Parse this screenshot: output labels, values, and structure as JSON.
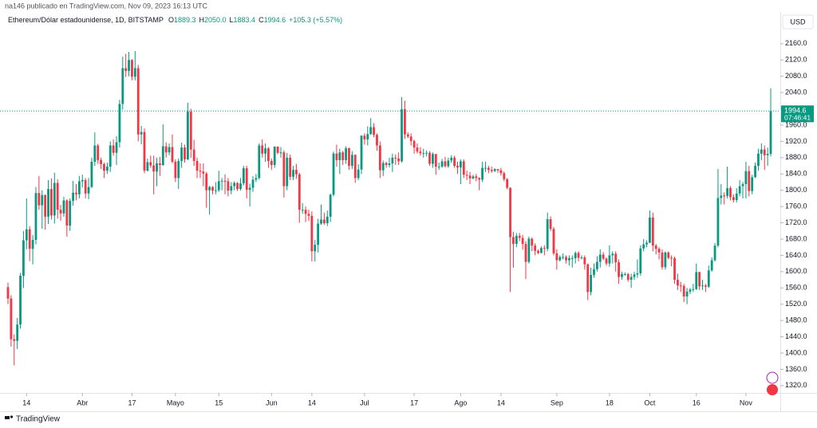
{
  "header": "na146 publicado en TradingView.com, Nov 09, 2023 16:13 UTC",
  "brand": "TradingView",
  "chart_data": {
    "type": "candlestick",
    "legend": {
      "symbol": "Ethereum/Dólar estadounidense, 1D, BITSTAMP",
      "items": [
        {
          "key": "O",
          "value": "1889.3"
        },
        {
          "key": "H",
          "value": "2050.0"
        },
        {
          "key": "L",
          "value": "1883.4"
        },
        {
          "key": "C",
          "value": "1994.6"
        }
      ],
      "change": "+105.3 (+5.57%)"
    },
    "currency": "USD",
    "countdown": "07:46:41",
    "up_color": "#089981",
    "down_color": "#f23645",
    "ylim": [
      1304,
      2238
    ],
    "yticks": [
      {
        "value": 1320,
        "label": "1320.0"
      },
      {
        "value": 1360,
        "label": "1360.0"
      },
      {
        "value": 1400,
        "label": "1400.0"
      },
      {
        "value": 1440,
        "label": "1440.0"
      },
      {
        "value": 1480,
        "label": "1480.0"
      },
      {
        "value": 1520,
        "label": "1520.0"
      },
      {
        "value": 1560,
        "label": "1560.0"
      },
      {
        "value": 1600,
        "label": "1600.0"
      },
      {
        "value": 1640,
        "label": "1640.0"
      },
      {
        "value": 1680,
        "label": "1680.0"
      },
      {
        "value": 1720,
        "label": "1720.0"
      },
      {
        "value": 1760,
        "label": "1760.0"
      },
      {
        "value": 1800,
        "label": "1800.0"
      },
      {
        "value": 1840,
        "label": "1840.0"
      },
      {
        "value": 1880,
        "label": "1880.0"
      },
      {
        "value": 1920,
        "label": "1920.0"
      },
      {
        "value": 1960,
        "label": "1960.0"
      },
      {
        "value": 2000,
        "label": "2000.0"
      },
      {
        "value": 2040,
        "label": "2040.0"
      },
      {
        "value": 2080,
        "label": "2080.0"
      },
      {
        "value": 2120,
        "label": "2120.0"
      },
      {
        "value": 2160,
        "label": "2160.0"
      }
    ],
    "xticks": [
      {
        "value": 6,
        "label": "14"
      },
      {
        "value": 24,
        "label": "Abr"
      },
      {
        "value": 40,
        "label": "17"
      },
      {
        "value": 54,
        "label": "Mayo"
      },
      {
        "value": 68,
        "label": "15"
      },
      {
        "value": 85,
        "label": "Jun"
      },
      {
        "value": 98,
        "label": "14"
      },
      {
        "value": 115,
        "label": "Jul"
      },
      {
        "value": 131,
        "label": "17"
      },
      {
        "value": 146,
        "label": "Ago"
      },
      {
        "value": 159,
        "label": "14"
      },
      {
        "value": 177,
        "label": "Sep"
      },
      {
        "value": 194,
        "label": "18"
      },
      {
        "value": 207,
        "label": "Oct"
      },
      {
        "value": 222,
        "label": "16"
      },
      {
        "value": 238,
        "label": "Nov"
      }
    ],
    "open": [
      1562,
      1534,
      1434,
      1430,
      1470,
      1590,
      1677,
      1704,
      1656,
      1678,
      1793,
      1763,
      1788,
      1735,
      1803,
      1738,
      1818,
      1752,
      1743,
      1775,
      1713,
      1774,
      1794,
      1790,
      1822,
      1825,
      1792,
      1808,
      1870,
      1910,
      1874,
      1864,
      1848,
      1858,
      1910,
      1892,
      1918,
      2012,
      2100,
      2093,
      2120,
      2079,
      2100,
      1937,
      1943,
      1848,
      1869,
      1861,
      1846,
      1866,
      1862,
      1908,
      1893,
      1906,
      1870,
      1830,
      1872,
      1905,
      1876,
      1993,
      1900,
      1872,
      1848,
      1846,
      1841,
      1800,
      1808,
      1799,
      1800,
      1822,
      1823,
      1822,
      1799,
      1810,
      1818,
      1803,
      1817,
      1854,
      1801,
      1806,
      1826,
      1830,
      1910,
      1890,
      1903,
      1872,
      1862,
      1907,
      1892,
      1893,
      1810,
      1880,
      1833,
      1850,
      1839,
      1752,
      1752,
      1742,
      1737,
      1650,
      1666,
      1718,
      1728,
      1719,
      1735,
      1789,
      1890,
      1874,
      1893,
      1874,
      1903,
      1860,
      1887,
      1830,
      1851,
      1934,
      1925,
      1938,
      1955,
      1936,
      1910,
      1849,
      1867,
      1862,
      1866,
      1880,
      1878,
      1871,
      1999,
      1937,
      1932,
      1921,
      1905,
      1895,
      1891,
      1891,
      1892,
      1865,
      1889,
      1858,
      1858,
      1871,
      1859,
      1873,
      1880,
      1860,
      1856,
      1871,
      1838,
      1836,
      1829,
      1834,
      1830,
      1826,
      1855,
      1855,
      1850,
      1847,
      1852,
      1849,
      1842,
      1827,
      1806,
      1685,
      1668,
      1688,
      1683,
      1668,
      1624,
      1681,
      1664,
      1651,
      1646,
      1658,
      1656,
      1729,
      1705,
      1645,
      1628,
      1636,
      1636,
      1628,
      1633,
      1633,
      1646,
      1634,
      1635,
      1618,
      1550,
      1592,
      1606,
      1624,
      1642,
      1632,
      1620,
      1640,
      1644,
      1623,
      1587,
      1594,
      1594,
      1580,
      1587,
      1593,
      1596,
      1657,
      1667,
      1671,
      1733,
      1664,
      1656,
      1647,
      1611,
      1647,
      1634,
      1633,
      1580,
      1566,
      1565,
      1539,
      1551,
      1556,
      1557,
      1599,
      1564,
      1566,
      1563,
      1603,
      1628,
      1664,
      1781,
      1787,
      1786,
      1805,
      1783,
      1776,
      1792,
      1810,
      1815,
      1847,
      1798,
      1832,
      1860,
      1890,
      1900,
      1886,
      1889.3
    ],
    "high": [
      1573,
      1542,
      1446,
      1486,
      1597,
      1700,
      1780,
      1712,
      1690,
      1808,
      1835,
      1800,
      1790,
      1825,
      1829,
      1843,
      1827,
      1764,
      1784,
      1778,
      1780,
      1823,
      1815,
      1835,
      1838,
      1830,
      1830,
      1880,
      1942,
      1914,
      1880,
      1868,
      1868,
      1920,
      1925,
      1933,
      2022,
      2128,
      2135,
      2140,
      2122,
      2142,
      2108,
      1958,
      1952,
      1878,
      1885,
      1885,
      1880,
      1882,
      1962,
      1918,
      1915,
      1937,
      1876,
      1878,
      1917,
      1912,
      2015,
      2000,
      1924,
      1880,
      1866,
      1866,
      1845,
      1811,
      1810,
      1820,
      1848,
      1830,
      1839,
      1830,
      1820,
      1822,
      1820,
      1830,
      1860,
      1860,
      1816,
      1835,
      1840,
      1915,
      1925,
      1915,
      1906,
      1878,
      1908,
      1908,
      1906,
      1898,
      1892,
      1888,
      1860,
      1865,
      1843,
      1768,
      1760,
      1752,
      1748,
      1678,
      1730,
      1765,
      1745,
      1750,
      1792,
      1895,
      1912,
      1902,
      1897,
      1908,
      1905,
      1896,
      1888,
      1864,
      1935,
      1940,
      1957,
      1977,
      1965,
      1940,
      1920,
      1873,
      1870,
      1880,
      1890,
      1888,
      1893,
      2029,
      2020,
      1942,
      1940,
      1924,
      1915,
      1906,
      1902,
      1898,
      1896,
      1893,
      1889,
      1868,
      1877,
      1882,
      1880,
      1886,
      1885,
      1870,
      1876,
      1876,
      1848,
      1845,
      1838,
      1840,
      1832,
      1870,
      1870,
      1860,
      1858,
      1854,
      1852,
      1855,
      1846,
      1830,
      1807,
      1698,
      1695,
      1695,
      1690,
      1675,
      1686,
      1684,
      1670,
      1655,
      1662,
      1665,
      1745,
      1736,
      1710,
      1655,
      1640,
      1645,
      1640,
      1640,
      1640,
      1650,
      1650,
      1640,
      1640,
      1620,
      1610,
      1620,
      1638,
      1655,
      1648,
      1635,
      1665,
      1650,
      1650,
      1630,
      1600,
      1598,
      1597,
      1595,
      1600,
      1630,
      1665,
      1680,
      1677,
      1750,
      1745,
      1668,
      1660,
      1655,
      1650,
      1650,
      1640,
      1637,
      1595,
      1575,
      1570,
      1560,
      1560,
      1570,
      1620,
      1600,
      1580,
      1570,
      1615,
      1635,
      1670,
      1852,
      1815,
      1795,
      1858,
      1810,
      1790,
      1805,
      1825,
      1820,
      1870,
      1860,
      1838,
      1868,
      1902,
      1915,
      1910,
      1905,
      2050
    ],
    "low": [
      1520,
      1416,
      1370,
      1410,
      1460,
      1560,
      1655,
      1626,
      1618,
      1667,
      1752,
      1705,
      1703,
      1717,
      1728,
      1718,
      1730,
      1725,
      1735,
      1686,
      1700,
      1762,
      1775,
      1780,
      1807,
      1780,
      1778,
      1805,
      1860,
      1865,
      1852,
      1830,
      1840,
      1845,
      1885,
      1862,
      1905,
      1998,
      2078,
      2080,
      2070,
      2070,
      1920,
      1913,
      1842,
      1846,
      1855,
      1790,
      1810,
      1835,
      1860,
      1880,
      1886,
      1866,
      1820,
      1803,
      1855,
      1868,
      1874,
      1880,
      1860,
      1830,
      1830,
      1810,
      1757,
      1740,
      1790,
      1790,
      1796,
      1800,
      1790,
      1785,
      1790,
      1800,
      1798,
      1799,
      1812,
      1780,
      1760,
      1796,
      1820,
      1826,
      1880,
      1870,
      1855,
      1850,
      1855,
      1888,
      1880,
      1782,
      1800,
      1825,
      1825,
      1828,
      1720,
      1742,
      1722,
      1725,
      1625,
      1625,
      1647,
      1715,
      1715,
      1712,
      1722,
      1785,
      1858,
      1840,
      1862,
      1865,
      1850,
      1852,
      1818,
      1825,
      1840,
      1912,
      1910,
      1936,
      1930,
      1897,
      1830,
      1835,
      1855,
      1856,
      1845,
      1862,
      1862,
      1868,
      1926,
      1928,
      1910,
      1890,
      1890,
      1885,
      1880,
      1883,
      1860,
      1855,
      1838,
      1850,
      1855,
      1856,
      1855,
      1867,
      1855,
      1840,
      1815,
      1830,
      1825,
      1815,
      1827,
      1822,
      1800,
      1820,
      1845,
      1842,
      1843,
      1845,
      1843,
      1836,
      1822,
      1802,
      1550,
      1610,
      1660,
      1675,
      1654,
      1582,
      1620,
      1650,
      1640,
      1643,
      1645,
      1640,
      1650,
      1700,
      1640,
      1605,
      1625,
      1630,
      1620,
      1615,
      1610,
      1620,
      1625,
      1630,
      1605,
      1530,
      1542,
      1585,
      1600,
      1610,
      1628,
      1615,
      1612,
      1620,
      1600,
      1570,
      1580,
      1590,
      1575,
      1560,
      1580,
      1585,
      1590,
      1650,
      1660,
      1670,
      1650,
      1642,
      1630,
      1605,
      1605,
      1630,
      1613,
      1570,
      1555,
      1550,
      1525,
      1520,
      1545,
      1550,
      1555,
      1555,
      1555,
      1550,
      1560,
      1600,
      1625,
      1660,
      1765,
      1765,
      1780,
      1775,
      1770,
      1770,
      1785,
      1780,
      1780,
      1785,
      1790,
      1830,
      1848,
      1874,
      1850,
      1860,
      1883.4
    ],
    "close": [
      1534,
      1434,
      1430,
      1470,
      1590,
      1677,
      1704,
      1656,
      1678,
      1793,
      1763,
      1788,
      1735,
      1803,
      1738,
      1818,
      1752,
      1743,
      1775,
      1713,
      1774,
      1794,
      1790,
      1822,
      1825,
      1792,
      1808,
      1870,
      1910,
      1874,
      1864,
      1848,
      1858,
      1910,
      1892,
      1918,
      2012,
      2100,
      2093,
      2120,
      2079,
      2100,
      1937,
      1943,
      1848,
      1869,
      1861,
      1846,
      1866,
      1862,
      1908,
      1893,
      1906,
      1870,
      1830,
      1872,
      1905,
      1876,
      1993,
      1900,
      1872,
      1848,
      1846,
      1841,
      1800,
      1808,
      1799,
      1800,
      1822,
      1823,
      1822,
      1799,
      1810,
      1818,
      1803,
      1817,
      1854,
      1801,
      1806,
      1826,
      1830,
      1910,
      1890,
      1903,
      1872,
      1862,
      1907,
      1892,
      1893,
      1810,
      1880,
      1833,
      1850,
      1839,
      1752,
      1752,
      1742,
      1737,
      1650,
      1666,
      1718,
      1728,
      1719,
      1735,
      1789,
      1890,
      1874,
      1893,
      1874,
      1903,
      1860,
      1887,
      1830,
      1851,
      1934,
      1925,
      1938,
      1955,
      1936,
      1910,
      1849,
      1867,
      1862,
      1866,
      1880,
      1878,
      1871,
      1999,
      1937,
      1932,
      1921,
      1905,
      1895,
      1891,
      1891,
      1892,
      1865,
      1889,
      1858,
      1858,
      1871,
      1859,
      1873,
      1880,
      1860,
      1856,
      1871,
      1838,
      1836,
      1829,
      1834,
      1830,
      1826,
      1855,
      1855,
      1850,
      1847,
      1852,
      1849,
      1842,
      1827,
      1806,
      1685,
      1668,
      1688,
      1683,
      1668,
      1624,
      1681,
      1664,
      1651,
      1646,
      1658,
      1656,
      1729,
      1705,
      1645,
      1628,
      1636,
      1636,
      1628,
      1633,
      1633,
      1646,
      1634,
      1635,
      1618,
      1550,
      1592,
      1606,
      1624,
      1642,
      1632,
      1620,
      1640,
      1644,
      1623,
      1587,
      1594,
      1594,
      1580,
      1587,
      1593,
      1596,
      1657,
      1667,
      1671,
      1733,
      1664,
      1656,
      1647,
      1611,
      1647,
      1634,
      1633,
      1580,
      1566,
      1565,
      1539,
      1551,
      1556,
      1557,
      1599,
      1564,
      1566,
      1563,
      1603,
      1628,
      1664,
      1781,
      1787,
      1786,
      1805,
      1783,
      1776,
      1792,
      1810,
      1815,
      1847,
      1798,
      1832,
      1860,
      1890,
      1900,
      1886,
      1889.3,
      1994.6
    ]
  }
}
